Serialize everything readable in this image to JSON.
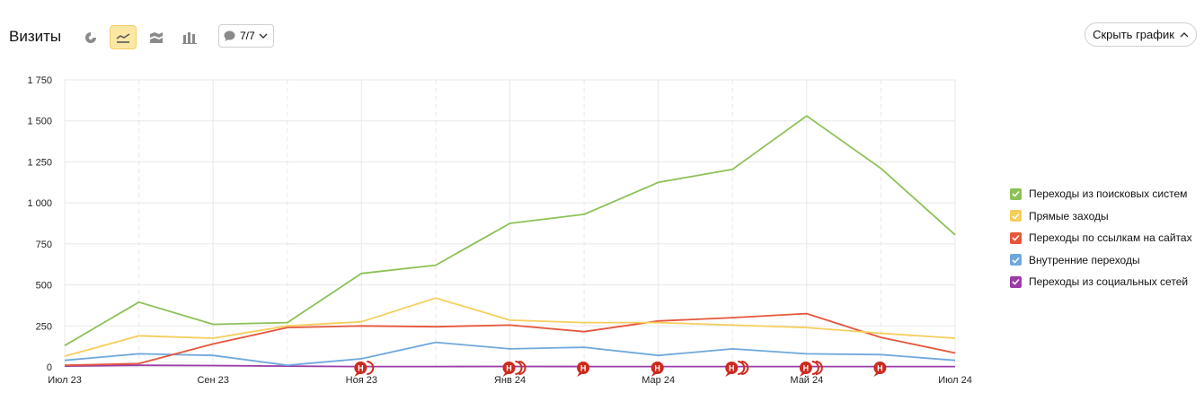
{
  "header": {
    "title": "Визиты",
    "annotations_label": "7/7",
    "hide_button_label": "Скрыть график"
  },
  "toolbar": {
    "icons": [
      "pie-chart-icon",
      "line-chart-icon",
      "area-chart-icon",
      "bar-chart-icon"
    ],
    "active": "line-chart-icon"
  },
  "colors": {
    "grid": "#e8e8e8",
    "axis_text": "#222222",
    "annotation": "#cc2a1e",
    "active_tool_bg": "#fde7a4"
  },
  "chart_data": {
    "type": "line",
    "x": [
      "Июл 23",
      "Авг 23",
      "Сен 23",
      "Окт 23",
      "Ноя 23",
      "Дек 23",
      "Янв 24",
      "Фев 24",
      "Мар 24",
      "Апр 24",
      "Май 24",
      "Июн 24",
      "Июл 24"
    ],
    "x_tick_labels": [
      "Июл 23",
      "Сен 23",
      "Ноя 23",
      "Янв 24",
      "Мар 24",
      "Май 24",
      "Июл 24"
    ],
    "y_tick_labels": [
      "0",
      "250",
      "500",
      "750",
      "1 000",
      "1 250",
      "1 500",
      "1 750"
    ],
    "ylim": [
      0,
      1750
    ],
    "grid": true,
    "legend_position": "right",
    "series": [
      {
        "name": "Переходы из поисковых систем",
        "color": "#8cc155",
        "values": [
          130,
          395,
          260,
          270,
          570,
          620,
          875,
          930,
          1125,
          1205,
          1530,
          1210,
          805
        ]
      },
      {
        "name": "Прямые заходы",
        "color": "#f5ce5a",
        "values": [
          65,
          190,
          175,
          250,
          275,
          420,
          285,
          270,
          270,
          255,
          240,
          205,
          175
        ]
      },
      {
        "name": "Переходы по ссылкам на сайтах",
        "color": "#e5563c",
        "values": [
          10,
          20,
          140,
          240,
          250,
          245,
          255,
          215,
          280,
          300,
          325,
          180,
          85
        ]
      },
      {
        "name": "Внутренние переходы",
        "color": "#6fa8dc",
        "values": [
          40,
          80,
          70,
          10,
          50,
          150,
          110,
          120,
          70,
          110,
          80,
          75,
          40
        ]
      },
      {
        "name": "Переходы из социальных сетей",
        "color": "#9b3ca8",
        "values": [
          5,
          10,
          8,
          5,
          2,
          2,
          3,
          2,
          2,
          2,
          2,
          2,
          2
        ]
      }
    ],
    "annotation_markers": [
      {
        "x": "Ноя 23",
        "count": 2
      },
      {
        "x": "Янв 24",
        "count": 3
      },
      {
        "x": "Фев 24",
        "count": 1
      },
      {
        "x": "Мар 24",
        "count": 1
      },
      {
        "x": "Апр 24",
        "count": 3
      },
      {
        "x": "Май 24",
        "count": 3
      },
      {
        "x": "Июн 24",
        "count": 1
      }
    ],
    "annotation_letter": "Н"
  }
}
